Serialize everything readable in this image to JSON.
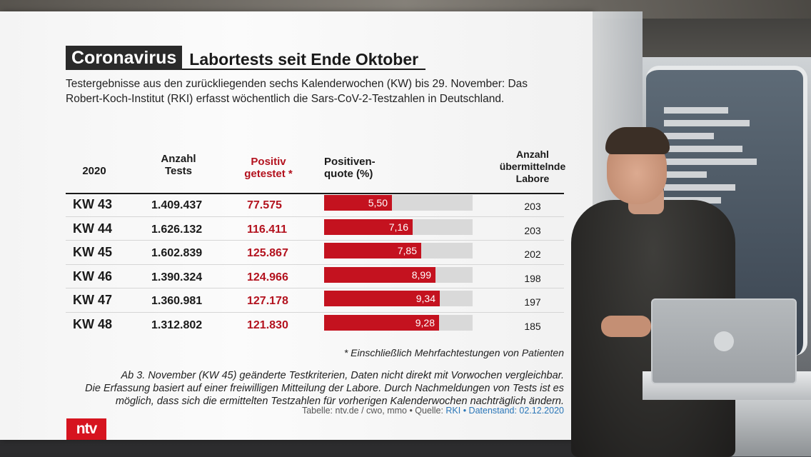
{
  "header": {
    "topic": "Coronavirus",
    "title": "Labortests seit Ende Oktober"
  },
  "subtitle": "Testergebnisse aus den zurückliegenden sechs Kalenderwochen (KW) bis 29. November: Das Robert-Koch-Institut (RKI) erfasst wöchentlich die Sars-CoV-2-Testzahlen in Deutschland.",
  "table": {
    "headers": {
      "year": "2020",
      "tests": [
        "Anzahl",
        "Tests"
      ],
      "positive": [
        "Positiv",
        "getestet *"
      ],
      "rate": [
        "Positiven-",
        "quote (%)"
      ],
      "labs": [
        "Anzahl",
        "übermittelnde",
        "Labore"
      ]
    },
    "rows": [
      {
        "kw": "KW 43",
        "tests": "1.409.437",
        "positive": "77.575",
        "rate_label": "5,50",
        "labs": "203"
      },
      {
        "kw": "KW 44",
        "tests": "1.626.132",
        "positive": "116.411",
        "rate_label": "7,16",
        "labs": "203"
      },
      {
        "kw": "KW 45",
        "tests": "1.602.839",
        "positive": "125.867",
        "rate_label": "7,85",
        "labs": "202"
      },
      {
        "kw": "KW 46",
        "tests": "1.390.324",
        "positive": "124.966",
        "rate_label": "8,99",
        "labs": "198"
      },
      {
        "kw": "KW 47",
        "tests": "1.360.981",
        "positive": "127.178",
        "rate_label": "9,34",
        "labs": "197"
      },
      {
        "kw": "KW 48",
        "tests": "1.312.802",
        "positive": "121.830",
        "rate_label": "9,28",
        "labs": "185"
      }
    ]
  },
  "notes": {
    "footnote": "* Einschließlich Mehrfachtestungen von Patienten",
    "line1": "Ab 3. November (KW 45) geänderte Testkriterien, Daten nicht direkt mit Vorwochen vergleichbar.",
    "line2": "Die Erfassung basiert auf einer freiwilligen Mitteilung der Labore. Durch Nachmeldungen von Tests ist es",
    "line3": "möglich, dass sich die ermittelten Testzahlen für vorherigen Kalenderwochen nachträglich ändern."
  },
  "source": {
    "prefix": "Tabelle: ntv.de / cwo, mmo • Quelle: ",
    "highlight": "RKI • Datenstand: 02.12.2020"
  },
  "logo": "ntv",
  "colors": {
    "accent_red": "#c4121f",
    "header_dark": "#2a2a2a",
    "track_gray": "#d9d9d9"
  },
  "chart_data": {
    "type": "bar",
    "categories": [
      "KW 43",
      "KW 44",
      "KW 45",
      "KW 46",
      "KW 47",
      "KW 48"
    ],
    "values": [
      5.5,
      7.16,
      7.85,
      8.99,
      9.34,
      9.28
    ],
    "ylim": [
      0,
      12
    ],
    "table_columns": {
      "tests": [
        1409437,
        1626132,
        1602839,
        1390324,
        1360981,
        1312802
      ],
      "positive": [
        77575,
        116411,
        125867,
        124966,
        127178,
        121830
      ],
      "labs": [
        203,
        203,
        202,
        198,
        197,
        185
      ]
    }
  }
}
